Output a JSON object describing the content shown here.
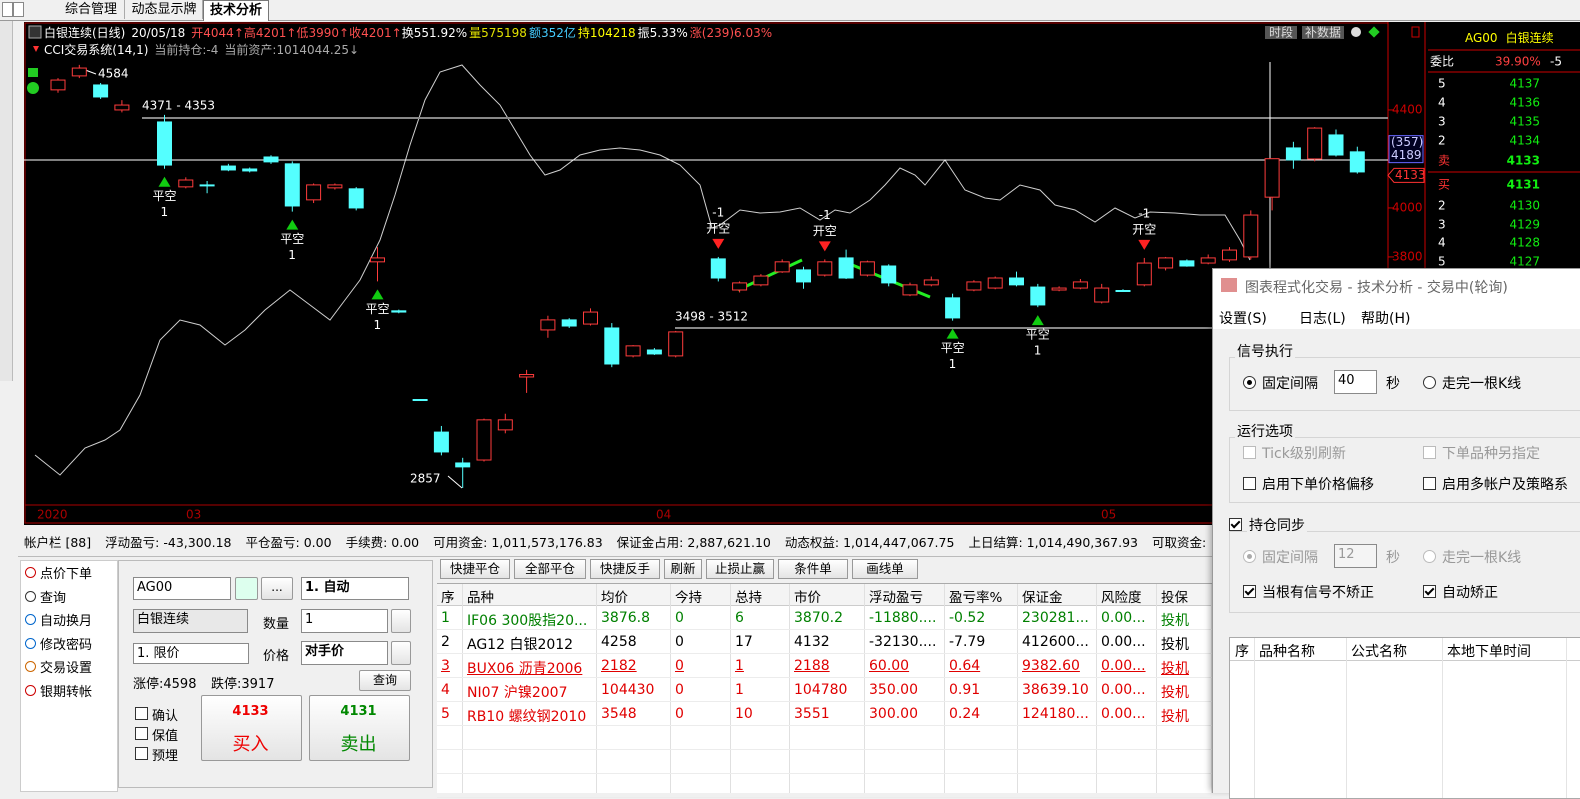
{
  "tabs": [
    "综合管理",
    "动态显示牌",
    "技术分析"
  ],
  "chart_data": {
    "type": "candlestick",
    "header": {
      "name": "白银连续(日线)",
      "date": "20/05/18",
      "open": "开4044↑",
      "high": "高4201↑",
      "low": "低3990↑",
      "close": "收4201↑",
      "turnover": "换551.92%",
      "volume": "量575198",
      "amount": "额352亿",
      "oi": "持104218",
      "amplitude": "振5.33%",
      "change": "涨(239)6.03%"
    },
    "system": {
      "name": "CCI交易系统(14,1)",
      "position": "当前持仓:-4",
      "assets": "当前资产:1014044.25↓"
    },
    "buttons": [
      "时段",
      "补数据"
    ],
    "up_color": "#ff3c3c",
    "down_color": "#54ffff",
    "candles": [
      [
        4482,
        4530,
        4470,
        4522
      ],
      [
        4539,
        4584,
        4530,
        4571
      ],
      [
        4502,
        4510,
        4445,
        4453
      ],
      [
        4400,
        4440,
        4390,
        4420
      ],
      null,
      [
        4351,
        4380,
        4160,
        4175
      ],
      [
        4086,
        4125,
        4080,
        4114
      ],
      [
        4094,
        4110,
        4060,
        4090
      ],
      [
        4171,
        4180,
        4150,
        4155
      ],
      [
        4159,
        4165,
        4145,
        4151
      ],
      [
        4208,
        4215,
        4180,
        4188
      ],
      [
        4180,
        4190,
        3985,
        4008
      ],
      [
        4033,
        4100,
        4020,
        4094
      ],
      [
        4082,
        4100,
        4075,
        4094
      ],
      [
        4078,
        4085,
        3990,
        4000
      ],
      [
        3780,
        3840,
        3700,
        3796
      ],
      [
        3580,
        3585,
        3570,
        3575
      ],
      [
        3218,
        3220,
        3214,
        3216
      ],
      [
        3085,
        3110,
        2990,
        3004
      ],
      [
        2959,
        2980,
        2857,
        2943
      ],
      [
        2971,
        3140,
        2965,
        3135
      ],
      [
        3094,
        3160,
        3080,
        3135
      ],
      [
        3310,
        3339,
        3245,
        3320
      ],
      [
        3502,
        3560,
        3470,
        3543
      ],
      [
        3543,
        3550,
        3510,
        3518
      ],
      [
        3526,
        3590,
        3520,
        3575
      ],
      [
        3510,
        3530,
        3350,
        3363
      ],
      [
        3396,
        3440,
        3390,
        3437
      ],
      [
        3420,
        3428,
        3400,
        3404
      ],
      [
        3396,
        3498,
        3390,
        3494
      ],
      null,
      [
        3792,
        3800,
        3700,
        3714
      ],
      [
        3665,
        3700,
        3655,
        3694
      ],
      [
        3686,
        3730,
        3680,
        3722
      ],
      [
        3739,
        3790,
        3735,
        3780
      ],
      [
        3747,
        3760,
        3670,
        3698
      ],
      [
        3726,
        3790,
        3720,
        3780
      ],
      [
        3796,
        3830,
        3710,
        3714
      ],
      [
        3726,
        3785,
        3720,
        3780
      ],
      [
        3763,
        3770,
        3680,
        3694
      ],
      [
        3645,
        3695,
        3640,
        3686
      ],
      [
        3686,
        3720,
        3680,
        3706
      ],
      [
        3633,
        3650,
        3540,
        3551
      ],
      [
        3665,
        3705,
        3660,
        3698
      ],
      [
        3673,
        3720,
        3668,
        3714
      ],
      [
        3714,
        3740,
        3680,
        3686
      ],
      [
        3677,
        3690,
        3595,
        3604
      ],
      [
        3665,
        3680,
        3660,
        3673
      ],
      [
        3673,
        3710,
        3668,
        3698
      ],
      [
        3616,
        3690,
        3610,
        3673
      ],
      [
        3663,
        3668,
        3658,
        3661
      ],
      [
        3686,
        3796,
        3680,
        3775
      ],
      [
        3755,
        3800,
        3745,
        3796
      ],
      [
        3784,
        3790,
        3760,
        3763
      ],
      [
        3775,
        3810,
        3770,
        3796
      ],
      [
        3788,
        3840,
        3780,
        3828
      ],
      [
        3800,
        3990,
        3790,
        3971
      ],
      [
        4044,
        4201,
        3990,
        4201
      ],
      [
        4245,
        4270,
        4160,
        4196
      ],
      [
        4200,
        4330,
        4190,
        4326
      ],
      [
        4298,
        4320,
        4210,
        4216
      ],
      [
        4229,
        4250,
        4140,
        4147
      ]
    ],
    "ylim": [
      2718,
      4759
    ],
    "yticks": [
      4400,
      4000,
      3800
    ],
    "annotations": {
      "high": "4584",
      "level_high": "4371 - 4353",
      "level_low": "3498 - 3512",
      "low": "2857"
    },
    "crosshair": {
      "change": "(357)",
      "price": 4189
    },
    "last_price": 4133,
    "dates": [
      "2020",
      "03",
      "04",
      "05"
    ],
    "signals": [
      {
        "at": 5,
        "text": "平空",
        "lots": 1
      },
      {
        "at": 11,
        "text": "平空",
        "lots": 1
      },
      {
        "at": 15,
        "text": "平空",
        "lots": 1
      },
      {
        "at": 31,
        "text": "开空",
        "lots": -1
      },
      {
        "at": 36,
        "text": "开空",
        "lots": -1
      },
      {
        "at": 42,
        "text": "平空",
        "lots": 1
      },
      {
        "at": 46,
        "text": "平空",
        "lots": 1
      },
      {
        "at": 51,
        "text": "开空",
        "lots": -1
      }
    ]
  },
  "quote": {
    "symbol": "AG00",
    "name": "白银连续",
    "ratio_label": "委比",
    "ratio": "39.90%",
    "ratio_extra": "-5",
    "asks": [
      {
        "level": 5,
        "price": 4137
      },
      {
        "level": 4,
        "price": 4136
      },
      {
        "level": 3,
        "price": 4135
      },
      {
        "level": 2,
        "price": 4134
      },
      {
        "level": "卖",
        "price": 4133
      }
    ],
    "bids": [
      {
        "level": "买",
        "price": 4131
      },
      {
        "level": 2,
        "price": 4130
      },
      {
        "level": 3,
        "price": 4129
      },
      {
        "level": 4,
        "price": 4128
      },
      {
        "level": 5,
        "price": 4127
      }
    ]
  },
  "account": {
    "title": "帐户栏 [88]",
    "items": [
      {
        "label": "浮动盈亏:",
        "value": "-43,300.18"
      },
      {
        "label": "平仓盈亏:",
        "value": "0.00"
      },
      {
        "label": "手续费:",
        "value": "0.00"
      },
      {
        "label": "可用资金:",
        "value": "1,011,573,176.83"
      },
      {
        "label": "保证金占用:",
        "value": "2,887,621.10"
      },
      {
        "label": "动态权益:",
        "value": "1,014,447,067.75"
      },
      {
        "label": "上日结算:",
        "value": "1,014,490,367.93"
      },
      {
        "label": "可取资金:"
      }
    ]
  },
  "menu": [
    "点价下单",
    "查询",
    "自动换月",
    "修改密码",
    "交易设置",
    "银期转帐"
  ],
  "order": {
    "symbol": "AG00",
    "more": "...",
    "mode": "1. 自动",
    "name": "白银连续",
    "qty_label": "数量",
    "qty": "1",
    "price_type": "1. 限价",
    "price_label": "价格",
    "price": "对手价",
    "limit_up": "涨停:4598",
    "limit_down": "跌停:3917",
    "query": "查询",
    "options": [
      "确认",
      "保值",
      "预埋"
    ],
    "buy_price": 4133,
    "buy": "买入",
    "sell_price": 4131,
    "sell": "卖出"
  },
  "actions": [
    "快捷平仓",
    "全部平仓",
    "快捷反手",
    "刷新",
    "止损止赢",
    "条件单",
    "画线单"
  ],
  "table": {
    "headers": [
      "序",
      "品种",
      "均价",
      "今持",
      "总持",
      "市价",
      "浮动盈亏",
      "盈亏率%",
      "保证金",
      "风险度",
      "投保"
    ],
    "rows": [
      {
        "color": "#008000",
        "cells": [
          "1",
          "IF06 300股指20...",
          "3876.8",
          "0",
          "6",
          "3870.2",
          "-11880....",
          "-0.52",
          "230281...",
          "0.00...",
          "投机"
        ]
      },
      {
        "color": "#000000",
        "cells": [
          "2",
          "AG12 白银2012",
          "4258",
          "0",
          "17",
          "4132",
          "-32130....",
          "-7.79",
          "412600...",
          "0.00...",
          "投机"
        ]
      },
      {
        "color": "#e00000",
        "underline": true,
        "cells": [
          "3",
          "BUX06 沥青2006",
          "2182",
          "0",
          "1",
          "2188",
          "60.00",
          "0.64",
          "9382.60",
          "0.00...",
          "投机"
        ]
      },
      {
        "color": "#e00000",
        "cells": [
          "4",
          "NI07 沪镍2007",
          "104430",
          "0",
          "1",
          "104780",
          "350.00",
          "0.91",
          "38639.10",
          "0.00...",
          "投机"
        ]
      },
      {
        "color": "#e00000",
        "cells": [
          "5",
          "RB10 螺纹钢2010",
          "3548",
          "0",
          "10",
          "3551",
          "300.00",
          "0.24",
          "124180...",
          "0.00...",
          "投机"
        ]
      }
    ]
  },
  "dialog": {
    "title": "图表程式化交易 - 技术分析 - 交易中(轮询)",
    "menu": [
      "设置(S)",
      "日志(L)",
      "帮助(H)"
    ],
    "signal": {
      "title": "信号执行",
      "interval": "固定间隔",
      "seconds": "40",
      "unit": "秒",
      "bar": "走完一根K线"
    },
    "options": {
      "title": "运行选项",
      "tick": "Tick级别刷新",
      "other": "下单品种另指定",
      "offset": "启用下单价格偏移",
      "multi": "启用多帐户及策略系"
    },
    "sync": {
      "title": "持仓同步",
      "interval": "固定间隔",
      "seconds": "12",
      "unit": "秒",
      "bar": "走完一根K线",
      "no_fix": "当根有信号不矫正",
      "auto_fix": "自动矫正"
    },
    "headers": [
      "序",
      "品种名称",
      "公式名称",
      "本地下单时间"
    ]
  }
}
